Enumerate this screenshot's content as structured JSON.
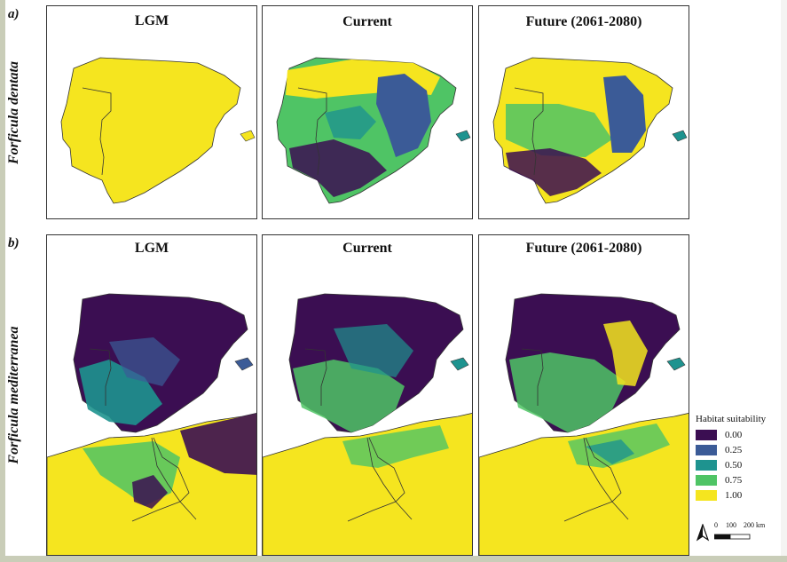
{
  "figure": {
    "row_a_label": "a)",
    "row_b_label": "b)",
    "species_a": "Forficula dentata",
    "species_b": "Forficula mediterranea"
  },
  "panels": {
    "a": [
      "LGM",
      "Current",
      "Future (2061-2080)"
    ],
    "b": [
      "LGM",
      "Current",
      "Future (2061-2080)"
    ]
  },
  "legend": {
    "title": "Habitat suitability",
    "items": [
      {
        "value": "0.00",
        "color": "#3b0e52"
      },
      {
        "value": "0.25",
        "color": "#3b5b97"
      },
      {
        "value": "0.50",
        "color": "#1e938f"
      },
      {
        "value": "0.75",
        "color": "#4fc465"
      },
      {
        "value": "1.00",
        "color": "#f5e51f"
      }
    ]
  },
  "scalebar": {
    "labels": [
      "0",
      "100",
      "200 km"
    ]
  },
  "colors": {
    "purple": "#3b0e52",
    "blue": "#3b5b97",
    "teal": "#1e938f",
    "green": "#4fc465",
    "yellow": "#f5e51f"
  }
}
